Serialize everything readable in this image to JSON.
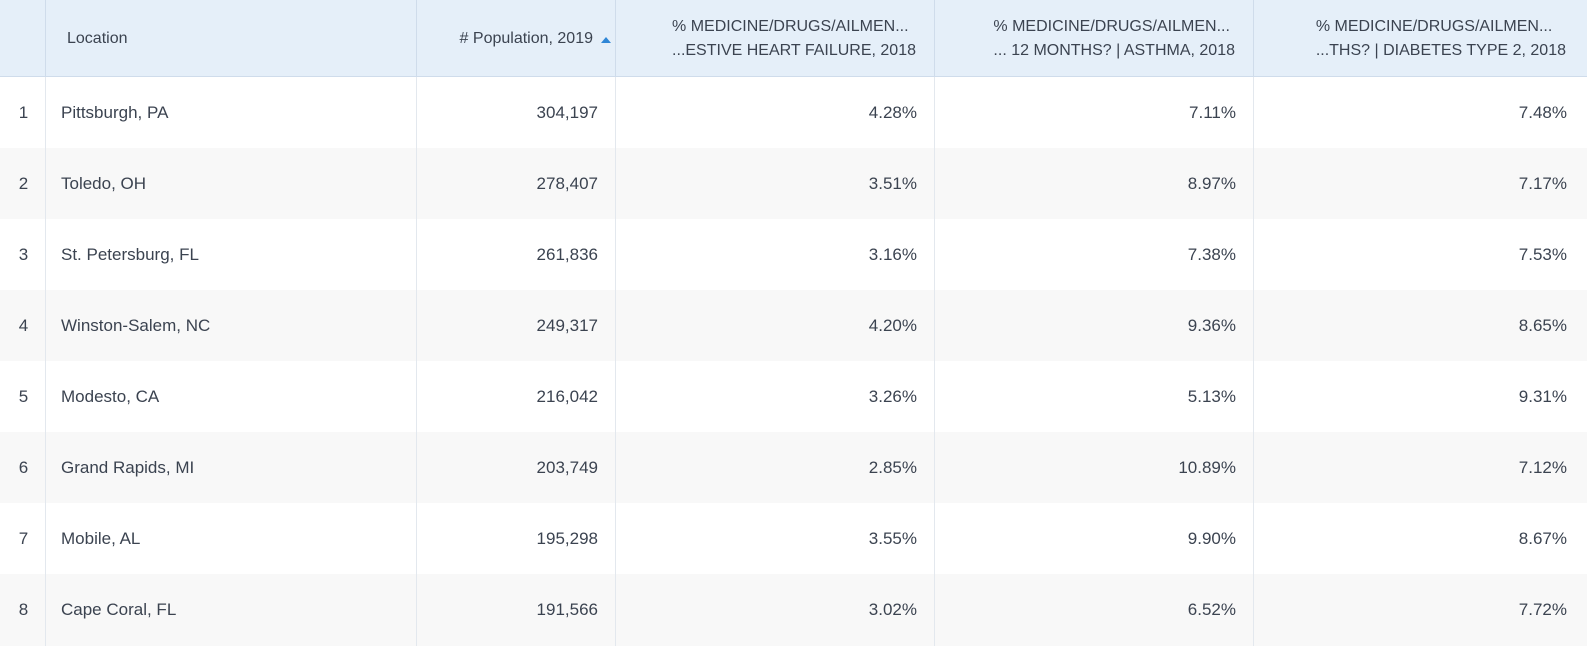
{
  "header": {
    "index": "",
    "location": "Location",
    "population": "# Population, 2019",
    "pct1_line1": "% MEDICINE/DRUGS/AILMEN...",
    "pct1_line2": "...ESTIVE HEART FAILURE, 2018",
    "pct2_line1": "% MEDICINE/DRUGS/AILMEN...",
    "pct2_line2": "... 12 MONTHS? | ASTHMA, 2018",
    "pct3_line1": "% MEDICINE/DRUGS/AILMEN...",
    "pct3_line2": "...THS? | DIABETES TYPE 2, 2018",
    "sort_icon": "sort-ascending-icon",
    "sort_color": "#2f86d6"
  },
  "rows": [
    {
      "index": "1",
      "location": "Pittsburgh, PA",
      "population": "304,197",
      "pct1": "4.28%",
      "pct2": "7.11%",
      "pct3": "7.48%"
    },
    {
      "index": "2",
      "location": "Toledo, OH",
      "population": "278,407",
      "pct1": "3.51%",
      "pct2": "8.97%",
      "pct3": "7.17%"
    },
    {
      "index": "3",
      "location": "St. Petersburg, FL",
      "population": "261,836",
      "pct1": "3.16%",
      "pct2": "7.38%",
      "pct3": "7.53%"
    },
    {
      "index": "4",
      "location": "Winston-Salem, NC",
      "population": "249,317",
      "pct1": "4.20%",
      "pct2": "9.36%",
      "pct3": "8.65%"
    },
    {
      "index": "5",
      "location": "Modesto, CA",
      "population": "216,042",
      "pct1": "3.26%",
      "pct2": "5.13%",
      "pct3": "9.31%"
    },
    {
      "index": "6",
      "location": "Grand Rapids, MI",
      "population": "203,749",
      "pct1": "2.85%",
      "pct2": "10.89%",
      "pct3": "7.12%"
    },
    {
      "index": "7",
      "location": "Mobile, AL",
      "population": "195,298",
      "pct1": "3.55%",
      "pct2": "9.90%",
      "pct3": "8.67%"
    },
    {
      "index": "8",
      "location": "Cape Coral, FL",
      "population": "191,566",
      "pct1": "3.02%",
      "pct2": "6.52%",
      "pct3": "7.72%"
    }
  ]
}
